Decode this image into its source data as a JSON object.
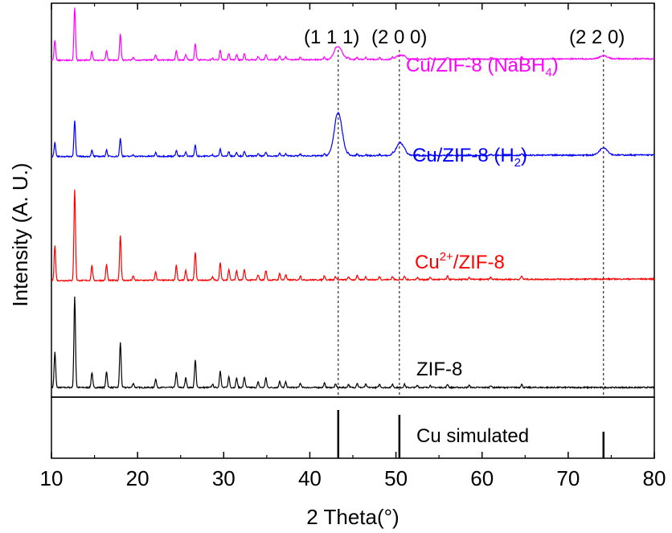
{
  "chart_data": {
    "type": "line",
    "xlabel": "2 Theta(°)",
    "ylabel": "Intensity (A. U.)",
    "xlim": [
      10,
      80
    ],
    "xticks": [
      "10",
      "20",
      "30",
      "40",
      "50",
      "60",
      "70",
      "80"
    ],
    "grid": false,
    "legend": "none",
    "reference_lines": [
      {
        "x": 43.3,
        "label": "(1 1 1)"
      },
      {
        "x": 50.4,
        "label": "(2 0 0)"
      },
      {
        "x": 74.1,
        "label": "(2 2 0)"
      }
    ],
    "reference_pattern": {
      "name": "Cu simulated",
      "peaks": [
        {
          "x": 43.3,
          "intensity": 1.0
        },
        {
          "x": 50.4,
          "intensity": 0.9
        },
        {
          "x": 74.1,
          "intensity": 0.55
        }
      ]
    },
    "zif8_peaks": [
      {
        "x": 10.4,
        "i": 0.33
      },
      {
        "x": 12.7,
        "i": 0.85
      },
      {
        "x": 14.7,
        "i": 0.14
      },
      {
        "x": 16.4,
        "i": 0.15
      },
      {
        "x": 18.0,
        "i": 0.42
      },
      {
        "x": 19.5,
        "i": 0.04
      },
      {
        "x": 22.1,
        "i": 0.08
      },
      {
        "x": 24.5,
        "i": 0.14
      },
      {
        "x": 25.6,
        "i": 0.09
      },
      {
        "x": 26.7,
        "i": 0.26
      },
      {
        "x": 28.7,
        "i": 0.03
      },
      {
        "x": 29.6,
        "i": 0.16
      },
      {
        "x": 30.6,
        "i": 0.1
      },
      {
        "x": 31.5,
        "i": 0.09
      },
      {
        "x": 32.4,
        "i": 0.1
      },
      {
        "x": 34.0,
        "i": 0.05
      },
      {
        "x": 34.9,
        "i": 0.09
      },
      {
        "x": 36.5,
        "i": 0.06
      },
      {
        "x": 37.2,
        "i": 0.05
      },
      {
        "x": 38.9,
        "i": 0.04
      },
      {
        "x": 41.7,
        "i": 0.04
      },
      {
        "x": 43.0,
        "i": 0.03
      },
      {
        "x": 44.5,
        "i": 0.03
      },
      {
        "x": 45.5,
        "i": 0.04
      },
      {
        "x": 46.5,
        "i": 0.03
      },
      {
        "x": 48.1,
        "i": 0.03
      },
      {
        "x": 49.6,
        "i": 0.03
      },
      {
        "x": 51.0,
        "i": 0.03
      },
      {
        "x": 52.5,
        "i": 0.02
      },
      {
        "x": 54.0,
        "i": 0.02
      },
      {
        "x": 56.0,
        "i": 0.03
      },
      {
        "x": 58.5,
        "i": 0.02
      },
      {
        "x": 61.0,
        "i": 0.02
      },
      {
        "x": 64.6,
        "i": 0.03
      }
    ],
    "series": [
      {
        "name": "ZIF-8",
        "color": "#000000",
        "baseline": 0.0,
        "zif8_scale": 1.0,
        "cu_peaks": [],
        "drift": 0.0
      },
      {
        "name": "Cu2+/ZIF-8",
        "color": "#ff0000",
        "baseline": 1.0,
        "zif8_scale": 1.0,
        "cu_peaks": [],
        "drift": 0.015
      },
      {
        "name": "Cu/ZIF-8 (H2)",
        "color": "#0000ff",
        "baseline": 2.16,
        "zif8_scale": 0.4,
        "cu_peaks": [
          {
            "x": 43.3,
            "i": 0.4
          },
          {
            "x": 50.5,
            "i": 0.12
          },
          {
            "x": 74.1,
            "i": 0.07
          }
        ],
        "drift": 0.015
      },
      {
        "name": "Cu/ZIF-8 (NaBH4)",
        "color": "#ff00ff",
        "baseline": 3.06,
        "zif8_scale": 0.58,
        "cu_peaks": [
          {
            "x": 43.3,
            "i": 0.12
          },
          {
            "x": 50.5,
            "i": 0.04
          },
          {
            "x": 74.1,
            "i": 0.03
          }
        ],
        "drift": 0.015
      }
    ],
    "series_labels": [
      {
        "base": "ZIF-8",
        "sup": "",
        "sub": "",
        "rest": "",
        "color": "#000000"
      },
      {
        "base": "Cu",
        "sup": "2+",
        "sub": "",
        "rest": "/ZIF-8",
        "color": "#ff0000"
      },
      {
        "base": "Cu/ZIF-8 (H",
        "sup": "",
        "sub": "2",
        "rest": ")",
        "color": "#0000ff"
      },
      {
        "base": "Cu/ZIF-8 (NaBH",
        "sup": "",
        "sub": "4",
        "rest": ")",
        "color": "#ff00ff"
      }
    ]
  }
}
